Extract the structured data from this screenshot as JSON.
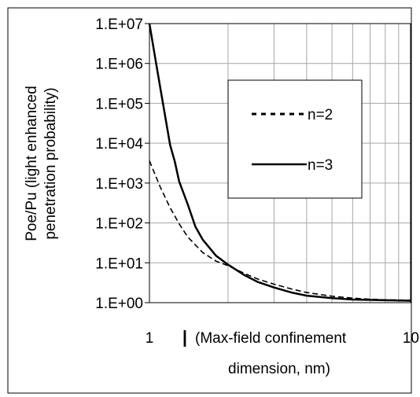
{
  "chart_data": {
    "type": "line",
    "title": "",
    "ylabel_line1": "Poe/Pu (light enhanced",
    "ylabel_line2": "penetration probability)",
    "xlabel_line1": "(Max-field confinement",
    "xlabel_line2": "dimension, nm)",
    "x_marker": "|",
    "x_scale": "log",
    "y_scale": "log",
    "xlim": [
      1,
      10
    ],
    "ylim": [
      1,
      10000000
    ],
    "x_ticks": [
      {
        "value": 1,
        "label": "1"
      },
      {
        "value": 10,
        "label": "10"
      }
    ],
    "y_ticks": [
      {
        "value": 1,
        "label": "1.E+00"
      },
      {
        "value": 10,
        "label": "1.E+01"
      },
      {
        "value": 100,
        "label": "1.E+02"
      },
      {
        "value": 1000,
        "label": "1.E+03"
      },
      {
        "value": 10000,
        "label": "1.E+04"
      },
      {
        "value": 100000,
        "label": "1.E+05"
      },
      {
        "value": 1000000,
        "label": "1.E+06"
      },
      {
        "value": 10000000,
        "label": "1.E+07"
      }
    ],
    "grid": true,
    "legend_position": "upper-center-right",
    "series": [
      {
        "name": "n=2",
        "style": "dashed",
        "color": "#000000",
        "points": [
          [
            1.0,
            3600
          ],
          [
            1.1,
            800
          ],
          [
            1.2,
            240
          ],
          [
            1.3,
            95
          ],
          [
            1.4,
            45
          ],
          [
            1.6,
            18
          ],
          [
            1.8,
            11
          ],
          [
            2.0,
            8.5
          ],
          [
            2.3,
            5.5
          ],
          [
            2.6,
            3.9
          ],
          [
            3.0,
            2.9
          ],
          [
            3.5,
            2.2
          ],
          [
            4.0,
            1.8
          ],
          [
            5.0,
            1.45
          ],
          [
            6.0,
            1.3
          ],
          [
            7.0,
            1.22
          ],
          [
            8.0,
            1.18
          ],
          [
            10.0,
            1.15
          ]
        ]
      },
      {
        "name": "n=3",
        "style": "solid",
        "color": "#000000",
        "points": [
          [
            1.0,
            10000000
          ],
          [
            1.05,
            1500000
          ],
          [
            1.1,
            250000
          ],
          [
            1.15,
            45000
          ],
          [
            1.2,
            9000
          ],
          [
            1.25,
            3500
          ],
          [
            1.3,
            1100
          ],
          [
            1.4,
            300
          ],
          [
            1.5,
            80
          ],
          [
            1.6,
            38
          ],
          [
            1.8,
            15
          ],
          [
            2.0,
            9
          ],
          [
            2.3,
            5
          ],
          [
            2.6,
            3.3
          ],
          [
            3.0,
            2.4
          ],
          [
            3.5,
            1.8
          ],
          [
            4.0,
            1.5
          ],
          [
            5.0,
            1.3
          ],
          [
            6.0,
            1.2
          ],
          [
            8.0,
            1.15
          ],
          [
            10.0,
            1.12
          ]
        ]
      }
    ]
  }
}
